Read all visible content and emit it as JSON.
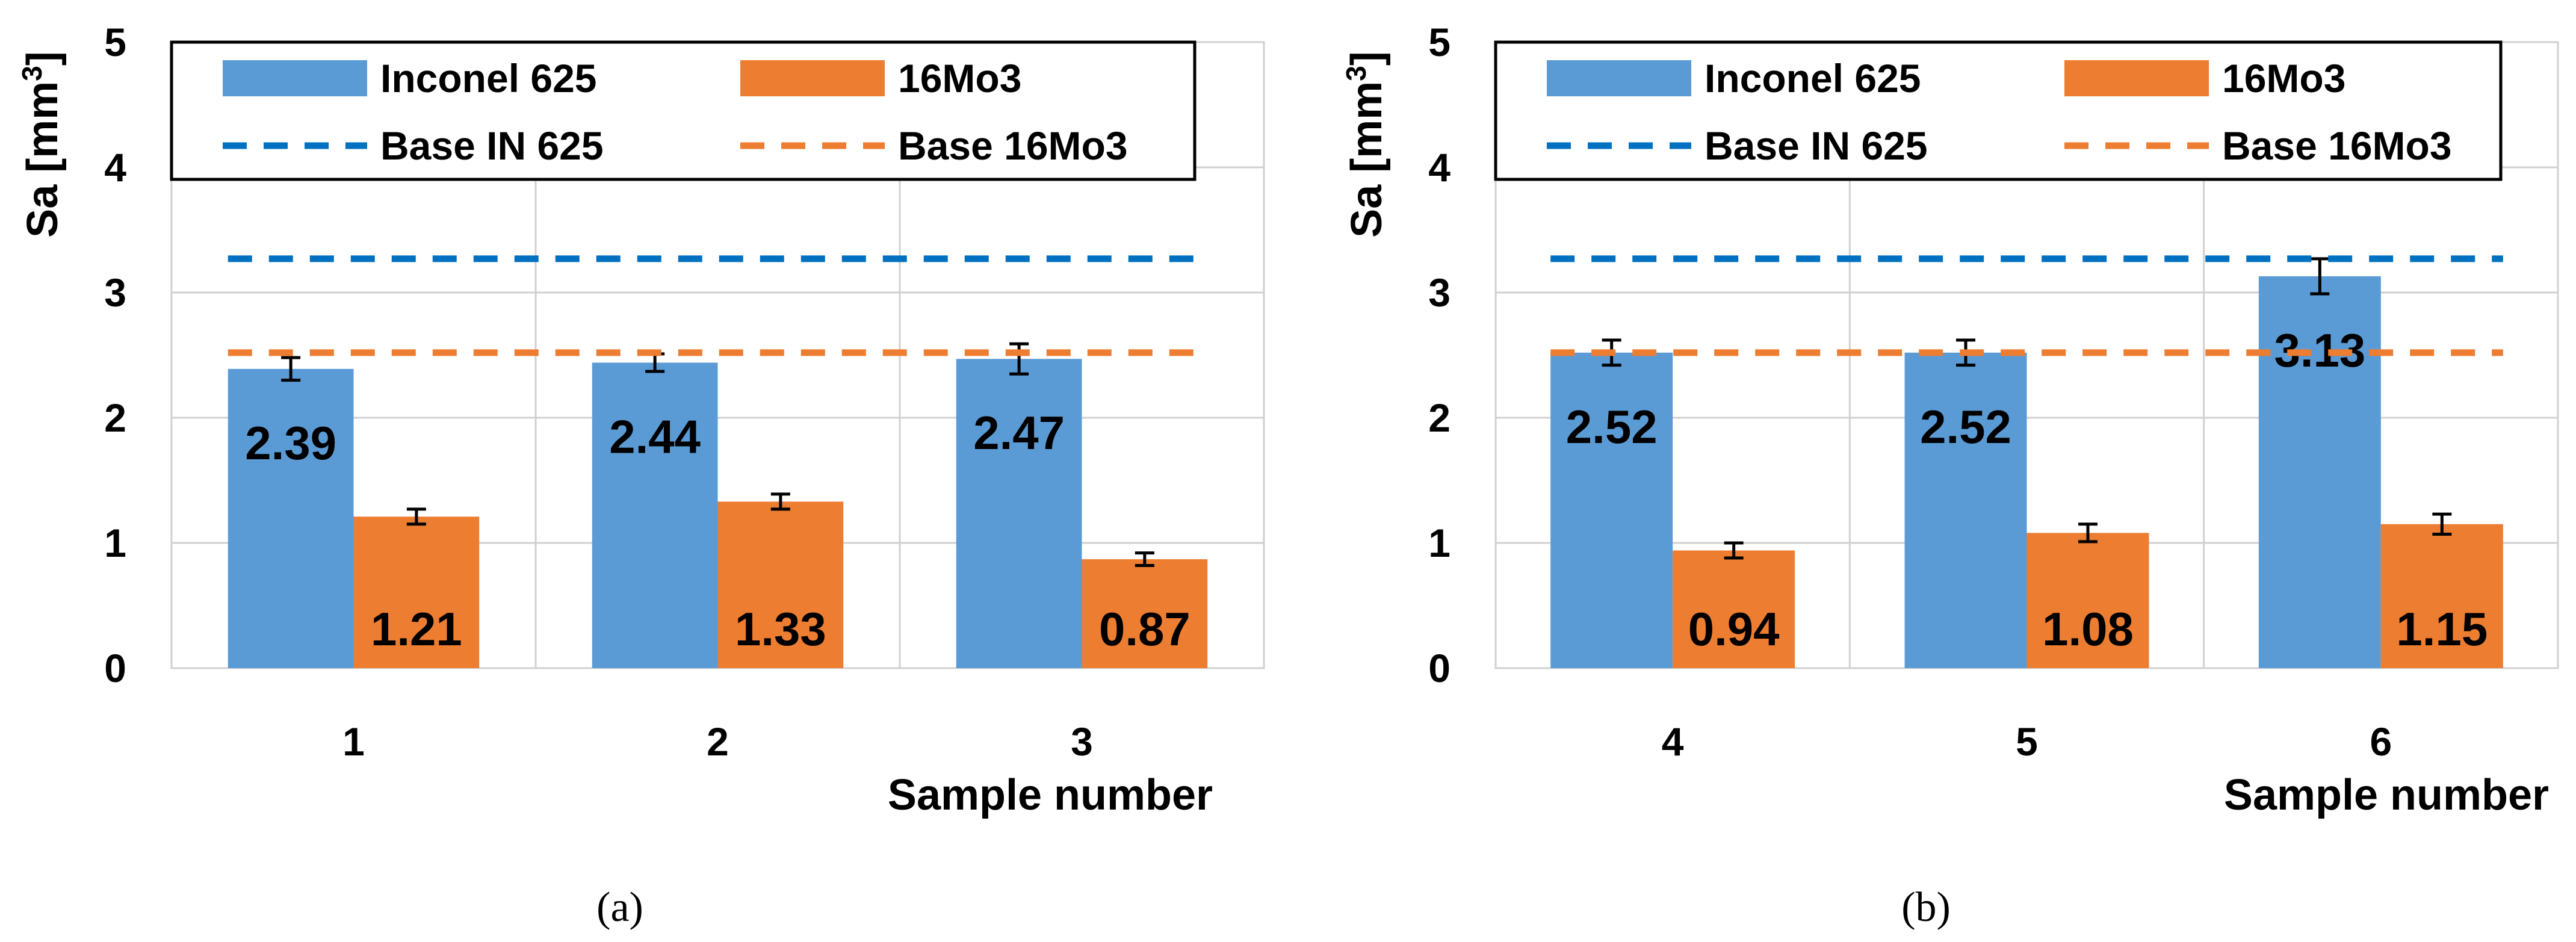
{
  "chart_data": [
    {
      "id": "a",
      "type": "bar",
      "caption": "(a)",
      "ylabel": "Sa [mm",
      "ylabel_sup": "3",
      "ylabel_close": "]",
      "xlabel": "Sample number",
      "ylim": [
        0,
        5
      ],
      "yticks": [
        "0",
        "1",
        "2",
        "3",
        "4",
        "5"
      ],
      "categories": [
        "1",
        "2",
        "3"
      ],
      "series": [
        {
          "name": "Inconel 625",
          "color": "#5B9BD5",
          "values": [
            2.39,
            2.44,
            2.47
          ],
          "labels": [
            "2.39",
            "2.44",
            "2.47"
          ],
          "err": [
            0.09,
            0.07,
            0.12
          ]
        },
        {
          "name": "16Mo3",
          "color": "#ED7D31",
          "values": [
            1.21,
            1.33,
            0.87
          ],
          "labels": [
            "1.21",
            "1.33",
            "0.87"
          ],
          "err": [
            0.06,
            0.06,
            0.05
          ]
        }
      ],
      "baselines": [
        {
          "name": "Base IN 625",
          "color": "#0070C0",
          "value": 3.27
        },
        {
          "name": "Base 16Mo3",
          "color": "#ED7D31",
          "value": 2.52
        }
      ]
    },
    {
      "id": "b",
      "type": "bar",
      "caption": "(b)",
      "ylabel": "Sa [mm",
      "ylabel_sup": "3",
      "ylabel_close": "]",
      "xlabel": "Sample number",
      "ylim": [
        0,
        5
      ],
      "yticks": [
        "0",
        "1",
        "2",
        "3",
        "4",
        "5"
      ],
      "categories": [
        "4",
        "5",
        "6"
      ],
      "series": [
        {
          "name": "Inconel 625",
          "color": "#5B9BD5",
          "values": [
            2.52,
            2.52,
            3.13
          ],
          "labels": [
            "2.52",
            "2.52",
            "3.13"
          ],
          "err": [
            0.1,
            0.1,
            0.14
          ]
        },
        {
          "name": "16Mo3",
          "color": "#ED7D31",
          "values": [
            0.94,
            1.08,
            1.15
          ],
          "labels": [
            "0.94",
            "1.08",
            "1.15"
          ],
          "err": [
            0.06,
            0.07,
            0.08
          ]
        }
      ],
      "baselines": [
        {
          "name": "Base IN 625",
          "color": "#0070C0",
          "value": 3.27
        },
        {
          "name": "Base 16Mo3",
          "color": "#ED7D31",
          "value": 2.52
        }
      ]
    }
  ]
}
